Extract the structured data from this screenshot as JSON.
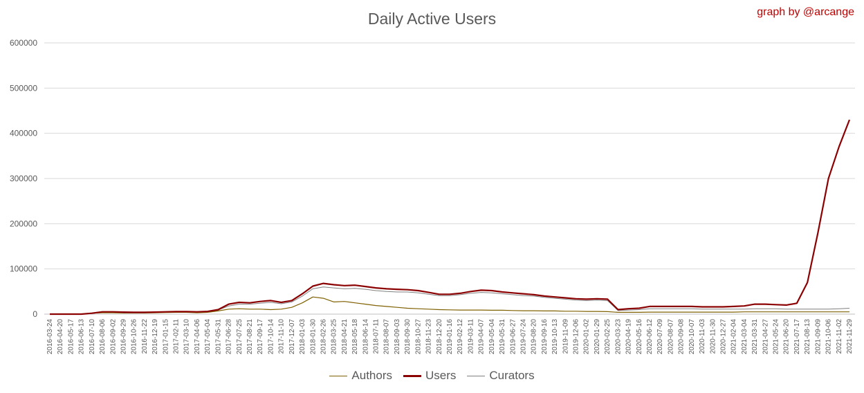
{
  "credit": "graph by @arcange",
  "chart_data": {
    "type": "line",
    "title": "Daily Active Users",
    "xlabel": "",
    "ylabel": "",
    "ylim": [
      0,
      600000
    ],
    "yticks": [
      0,
      100000,
      200000,
      300000,
      400000,
      500000,
      600000
    ],
    "grid": true,
    "legend_position": "bottom",
    "x": [
      "2016-03-24",
      "2016-04-20",
      "2016-05-17",
      "2016-06-13",
      "2016-07-10",
      "2016-08-06",
      "2016-09-02",
      "2016-09-29",
      "2016-10-26",
      "2016-11-22",
      "2016-12-19",
      "2017-01-15",
      "2017-02-11",
      "2017-03-10",
      "2017-04-06",
      "2017-05-04",
      "2017-05-31",
      "2017-06-28",
      "2017-07-25",
      "2017-08-21",
      "2017-09-17",
      "2017-10-14",
      "2017-11-10",
      "2017-12-07",
      "2018-01-03",
      "2018-01-30",
      "2018-02-26",
      "2018-03-25",
      "2018-04-21",
      "2018-05-18",
      "2018-06-14",
      "2018-07-11",
      "2018-08-07",
      "2018-09-03",
      "2018-09-30",
      "2018-10-27",
      "2018-11-23",
      "2018-12-20",
      "2019-01-16",
      "2019-02-12",
      "2019-03-11",
      "2019-04-07",
      "2019-05-04",
      "2019-05-31",
      "2019-06-27",
      "2019-07-24",
      "2019-08-20",
      "2019-09-16",
      "2019-10-13",
      "2019-11-09",
      "2019-12-06",
      "2020-01-02",
      "2020-01-29",
      "2020-02-25",
      "2020-03-23",
      "2020-04-19",
      "2020-05-16",
      "2020-06-12",
      "2020-07-09",
      "2020-08-07",
      "2020-09-08",
      "2020-10-07",
      "2020-11-03",
      "2020-11-30",
      "2020-12-27",
      "2021-02-04",
      "2021-03-04",
      "2021-03-31",
      "2021-04-27",
      "2021-05-24",
      "2021-06-20",
      "2021-07-17",
      "2021-08-13",
      "2021-09-09",
      "2021-10-06",
      "2021-11-02",
      "2021-11-29"
    ],
    "series": [
      {
        "name": "Authors",
        "color": "#7f6000",
        "width": 1.2,
        "values": [
          0,
          0,
          0,
          0,
          2000,
          3000,
          3000,
          2500,
          2500,
          2500,
          3000,
          3500,
          4000,
          4000,
          3000,
          4000,
          7000,
          11000,
          12000,
          11000,
          11000,
          10000,
          11000,
          15000,
          25000,
          38000,
          35000,
          27000,
          28000,
          25000,
          22000,
          19000,
          17000,
          15000,
          13000,
          12000,
          11000,
          10000,
          9500,
          9000,
          9000,
          9000,
          8500,
          8500,
          8000,
          7500,
          7500,
          7000,
          7000,
          6500,
          6500,
          6000,
          6000,
          5500,
          4000,
          4000,
          4000,
          4500,
          4500,
          4500,
          4500,
          4500,
          4500,
          4500,
          4500,
          4500,
          5000,
          5000,
          5000,
          5000,
          5000,
          5000,
          5000,
          5000,
          5000,
          5000,
          5000
        ]
      },
      {
        "name": "Users",
        "color": "#8b0000",
        "width": 2.2,
        "values": [
          0,
          0,
          0,
          0,
          2000,
          5000,
          5000,
          4500,
          4000,
          4000,
          4500,
          5000,
          5500,
          5500,
          5000,
          6000,
          10000,
          22000,
          26000,
          25000,
          28000,
          30000,
          26000,
          30000,
          45000,
          62000,
          68000,
          65000,
          63000,
          64000,
          61000,
          58000,
          56000,
          55000,
          54000,
          52000,
          48000,
          44000,
          44000,
          46000,
          50000,
          53000,
          52000,
          49000,
          47000,
          45000,
          43000,
          40000,
          38000,
          36000,
          34000,
          33000,
          34000,
          33000,
          10000,
          12000,
          13000,
          17000,
          17000,
          17000,
          17000,
          17000,
          16000,
          16000,
          16000,
          17000,
          18000,
          22000,
          22000,
          21000,
          20000,
          24000,
          70000,
          180000,
          300000,
          370000,
          430000
        ]
      },
      {
        "name": "Curators",
        "color": "#7f7f7f",
        "width": 1.0,
        "values": [
          0,
          0,
          0,
          0,
          1500,
          4000,
          4000,
          3500,
          3500,
          3500,
          4000,
          4500,
          5000,
          5000,
          4500,
          5500,
          9000,
          18000,
          22000,
          22000,
          24000,
          26000,
          23000,
          27000,
          40000,
          56000,
          60000,
          58000,
          56000,
          57000,
          55000,
          52000,
          50000,
          49000,
          49000,
          47000,
          44000,
          41000,
          41000,
          43000,
          46000,
          48000,
          47000,
          45000,
          43000,
          41000,
          40000,
          37000,
          35000,
          33000,
          31000,
          30000,
          31000,
          30000,
          8000,
          9000,
          10000,
          12000,
          12000,
          12000,
          12000,
          12000,
          11000,
          11000,
          11000,
          11000,
          11000,
          12000,
          12000,
          12000,
          11000,
          11000,
          11000,
          11000,
          11000,
          12000,
          13000
        ]
      }
    ]
  }
}
